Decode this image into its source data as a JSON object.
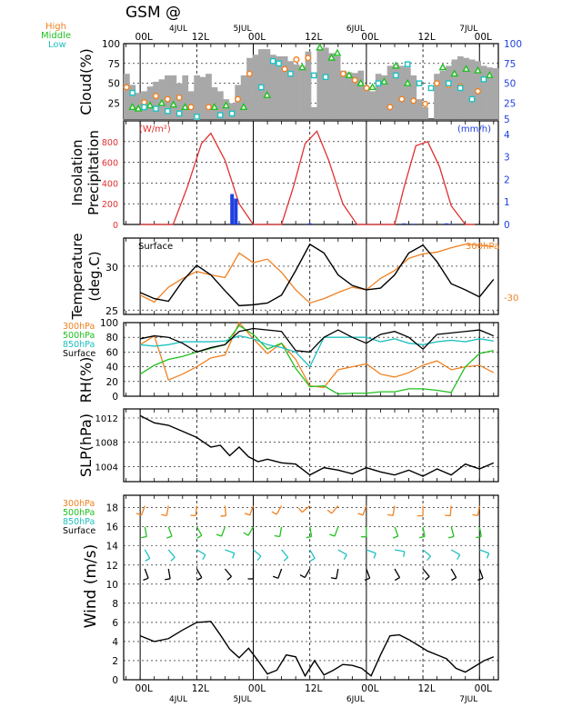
{
  "title": "GSM  @",
  "date_labels": {
    "top": [
      "4JUL",
      "5JUL",
      "6JUL",
      "7JUL"
    ],
    "bottom": [
      "4JUL",
      "5JUL",
      "6JUL",
      "7JUL"
    ]
  },
  "time_ticks": [
    "00L",
    "12L",
    "00L",
    "12L",
    "00L",
    "12L",
    "00L"
  ],
  "colors": {
    "high": "#f08020",
    "middle": "#20c020",
    "low": "#20c0c0",
    "black": "#000000",
    "red": "#e03030",
    "blue": "#2040e0",
    "gray": "#a8a8a8"
  },
  "chart_data": [
    {
      "type": "area",
      "name": "cloud",
      "ylabel": "Cloud(%)",
      "legend": [
        "High",
        "Middle",
        "Low"
      ],
      "yticks_left": [
        "25",
        "50",
        "75",
        "100"
      ],
      "yticks_right": [
        "5",
        "25",
        "50",
        "75",
        "100"
      ],
      "ylim": [
        5,
        100
      ],
      "total": [
        62,
        48,
        38,
        40,
        46,
        52,
        55,
        60,
        60,
        50,
        60,
        40,
        60,
        58,
        62,
        45,
        40,
        30,
        25,
        48,
        60,
        82,
        86,
        93,
        93,
        86,
        84,
        84,
        78,
        74,
        72,
        90,
        20,
        93,
        95,
        88,
        84,
        66,
        64,
        63,
        66,
        46,
        40,
        62,
        60,
        72,
        74,
        72,
        70,
        60,
        30,
        20,
        5,
        62,
        66,
        72,
        80,
        84,
        82,
        80,
        78,
        72,
        70,
        69
      ],
      "high_points": [
        [
          0,
          45
        ],
        [
          3,
          26
        ],
        [
          5,
          34
        ],
        [
          7,
          30
        ],
        [
          9,
          32
        ],
        [
          11,
          20
        ],
        [
          14,
          20
        ],
        [
          19,
          30
        ],
        [
          21,
          62
        ],
        [
          27,
          68
        ],
        [
          29,
          80
        ],
        [
          31,
          82
        ],
        [
          37,
          62
        ],
        [
          39,
          54
        ],
        [
          41,
          44
        ],
        [
          45,
          20
        ],
        [
          47,
          30
        ],
        [
          49,
          28
        ],
        [
          51,
          24
        ],
        [
          53,
          50
        ],
        [
          55,
          48
        ],
        [
          57,
          46
        ],
        [
          60,
          40
        ]
      ],
      "middle_points": [
        [
          1,
          20
        ],
        [
          2,
          18
        ],
        [
          4,
          22
        ],
        [
          6,
          25
        ],
        [
          8,
          23
        ],
        [
          10,
          20
        ],
        [
          15,
          20
        ],
        [
          17,
          22
        ],
        [
          20,
          20
        ],
        [
          24,
          35
        ],
        [
          30,
          70
        ],
        [
          33,
          95
        ],
        [
          35,
          82
        ],
        [
          36,
          88
        ],
        [
          38,
          60
        ],
        [
          40,
          50
        ],
        [
          42,
          45
        ],
        [
          44,
          52
        ],
        [
          46,
          72
        ],
        [
          48,
          50
        ],
        [
          54,
          70
        ],
        [
          56,
          62
        ],
        [
          58,
          68
        ],
        [
          60,
          66
        ],
        [
          62,
          60
        ]
      ],
      "low_points": [
        [
          1,
          38
        ],
        [
          3,
          20
        ],
        [
          5,
          18
        ],
        [
          7,
          15
        ],
        [
          9,
          12
        ],
        [
          12,
          8
        ],
        [
          16,
          10
        ],
        [
          18,
          12
        ],
        [
          23,
          45
        ],
        [
          25,
          78
        ],
        [
          26,
          75
        ],
        [
          28,
          62
        ],
        [
          32,
          60
        ],
        [
          34,
          58
        ],
        [
          43,
          50
        ],
        [
          46,
          60
        ],
        [
          48,
          74
        ],
        [
          50,
          50
        ],
        [
          52,
          44
        ],
        [
          55,
          50
        ],
        [
          57,
          44
        ],
        [
          59,
          30
        ],
        [
          61,
          55
        ]
      ]
    },
    {
      "type": "line",
      "name": "insolation_precipitation",
      "ylabel": "Insolation Precipitation",
      "units_left": "(W/m²)",
      "units_right": "(mm/h)",
      "yticks_left": [
        "0",
        "200",
        "400",
        "600",
        "800"
      ],
      "yticks_right": [
        "0",
        "1",
        "2",
        "3",
        "4"
      ],
      "ylim_left": [
        0,
        1000
      ],
      "ylim_right": [
        0,
        4.6
      ],
      "x_hours": [
        0,
        3,
        6,
        9,
        12,
        15,
        18,
        21,
        24,
        27,
        30,
        33,
        36,
        39,
        42,
        45,
        48,
        51,
        54,
        57,
        60,
        63,
        66,
        69,
        72,
        75
      ],
      "insolation": [
        0,
        0,
        0,
        380,
        780,
        900,
        640,
        220,
        0,
        0,
        0,
        380,
        780,
        920,
        640,
        220,
        0,
        0,
        0,
        380,
        760,
        810,
        560,
        180,
        0,
        0
      ],
      "insolation_x": [
        0,
        4,
        7,
        10,
        13,
        15,
        18,
        21,
        24,
        27,
        30,
        32.5,
        35,
        37.5,
        40,
        43,
        46,
        50,
        54,
        56,
        58.5,
        61,
        63.5,
        66,
        69,
        71
      ],
      "insolation_y": [
        0,
        0,
        0,
        360,
        780,
        880,
        620,
        200,
        0,
        0,
        0,
        360,
        780,
        900,
        620,
        200,
        0,
        0,
        0,
        360,
        760,
        800,
        560,
        180,
        0,
        0
      ],
      "precip_hours": [
        19.5,
        20.3,
        21,
        36,
        56,
        58,
        65,
        66
      ],
      "precip_mm": [
        1.35,
        1.15,
        0.05,
        0.05,
        0.05,
        0.03,
        0.05,
        0.03
      ]
    },
    {
      "type": "line",
      "name": "temperature",
      "ylabel": "Temperature (deg.C)",
      "surface_label": "Surface",
      "label_300": "300hPa",
      "right_tick": "-30",
      "yticks": [
        "25",
        "30"
      ],
      "ylim": [
        24.5,
        33.2
      ],
      "x": [
        0,
        3,
        6,
        9,
        12,
        15,
        18,
        21,
        24,
        27,
        30,
        33,
        36,
        39,
        42,
        45,
        48,
        51,
        54,
        57,
        60,
        63,
        66,
        69,
        72,
        75
      ],
      "surface": [
        27.0,
        26.3,
        26.0,
        28.3,
        30.1,
        29.0,
        27.2,
        25.5,
        25.6,
        25.8,
        26.7,
        29.5,
        32.5,
        31.5,
        29.0,
        27.8,
        27.3,
        27.5,
        29.0,
        31.5,
        32.4,
        30.5,
        28.0,
        27.3,
        26.5,
        28.5
      ],
      "upper300": [
        26.7,
        25.9,
        27.6,
        28.6,
        29.4,
        29.0,
        28.7,
        31.5,
        30.4,
        30.8,
        29.3,
        27.3,
        25.8,
        26.3,
        27.0,
        27.6,
        27.3,
        28.6,
        29.5,
        30.9,
        31.4,
        31.6,
        32.1,
        32.5,
        32.4,
        32.2
      ]
    },
    {
      "type": "line",
      "name": "rh",
      "ylabel": "RH(%)",
      "legend": [
        "300hPa",
        "500hPa",
        "850hPa",
        "Surface"
      ],
      "yticks": [
        "0",
        "20",
        "40",
        "60",
        "80",
        "100"
      ],
      "ylim": [
        0,
        100
      ],
      "x": [
        0,
        3,
        6,
        9,
        12,
        15,
        18,
        21,
        24,
        27,
        30,
        33,
        36,
        39,
        42,
        45,
        48,
        51,
        54,
        57,
        60,
        63,
        66,
        69,
        72,
        75
      ],
      "r300": [
        70,
        82,
        22,
        30,
        40,
        52,
        56,
        100,
        78,
        58,
        72,
        50,
        14,
        12,
        36,
        40,
        44,
        30,
        26,
        32,
        42,
        48,
        36,
        40,
        42,
        32
      ],
      "r500": [
        30,
        42,
        50,
        54,
        60,
        65,
        70,
        96,
        84,
        64,
        72,
        38,
        13,
        14,
        3,
        4,
        4,
        6,
        6,
        10,
        10,
        8,
        5,
        40,
        58,
        62
      ],
      "r850": [
        70,
        68,
        70,
        74,
        74,
        74,
        75,
        82,
        78,
        70,
        66,
        60,
        40,
        80,
        80,
        80,
        80,
        74,
        78,
        72,
        70,
        74,
        76,
        74,
        78,
        75
      ],
      "rsfc": [
        78,
        82,
        80,
        72,
        60,
        66,
        70,
        88,
        92,
        90,
        88,
        62,
        60,
        80,
        90,
        80,
        72,
        84,
        88,
        80,
        64,
        84,
        86,
        88,
        90,
        82
      ]
    },
    {
      "type": "line",
      "name": "slp",
      "ylabel": "SLP(hPa)",
      "yticks": [
        "1004",
        "1008",
        "1012"
      ],
      "ylim": [
        1001.5,
        1013.5
      ],
      "x": [
        0,
        3,
        6,
        9,
        12,
        15,
        17,
        19,
        21,
        23,
        25,
        27,
        30,
        33,
        36,
        39,
        42,
        45,
        48,
        51,
        54,
        57,
        60,
        63,
        66,
        69,
        72,
        75
      ],
      "slp": [
        1012.4,
        1011.2,
        1010.8,
        1009.8,
        1008.8,
        1007.2,
        1007.5,
        1005.8,
        1007.2,
        1005.6,
        1004.8,
        1005.2,
        1004.6,
        1004.4,
        1002.6,
        1003.8,
        1003.4,
        1002.8,
        1003.8,
        1003.1,
        1002.6,
        1003.4,
        1002.4,
        1003.6,
        1002.6,
        1004.4,
        1003.6,
        1004.6
      ]
    },
    {
      "type": "line",
      "name": "wind",
      "ylabel": "Wind (m/s)",
      "legend": [
        "300hPa",
        "500hPa",
        "850hPa",
        "Surface"
      ],
      "yticks": [
        "0",
        "2",
        "4",
        "6",
        "8",
        "10",
        "12",
        "14",
        "16",
        "18"
      ],
      "ylim": [
        0,
        19.3
      ],
      "x": [
        0,
        3,
        6,
        9,
        12,
        15,
        17,
        19,
        21,
        23,
        25,
        27,
        29,
        31,
        33,
        35,
        37,
        39,
        41,
        43,
        45,
        47,
        49,
        51,
        53,
        55,
        57,
        59,
        61,
        63,
        65,
        67,
        69,
        71,
        73,
        75
      ],
      "wind": [
        4.6,
        4.0,
        4.3,
        5.2,
        6.0,
        6.1,
        4.7,
        3.2,
        2.3,
        3.3,
        2.0,
        0.6,
        1.0,
        2.6,
        2.4,
        0.4,
        2.0,
        0.5,
        1.0,
        1.6,
        1.5,
        1.2,
        0.4,
        2.6,
        4.6,
        4.7,
        4.2,
        3.6,
        3.0,
        2.6,
        2.2,
        1.2,
        0.8,
        1.4,
        2.0,
        2.4
      ],
      "barb_hours": [
        1,
        6,
        12,
        18,
        24,
        30,
        36,
        42,
        48,
        54,
        60,
        66,
        72
      ],
      "barb_dirs_300": [
        200,
        190,
        185,
        175,
        200,
        210,
        230,
        220,
        200,
        190,
        180,
        185,
        190
      ],
      "barb_dirs_500": [
        170,
        160,
        150,
        200,
        210,
        190,
        170,
        200,
        180,
        160,
        170,
        165,
        170
      ],
      "barb_dirs_850": [
        150,
        140,
        120,
        110,
        130,
        140,
        150,
        120,
        110,
        100,
        130,
        120,
        110
      ],
      "barb_dirs_sfc": [
        160,
        170,
        150,
        140,
        180,
        200,
        210,
        190,
        160,
        150,
        140,
        150,
        160
      ]
    }
  ]
}
